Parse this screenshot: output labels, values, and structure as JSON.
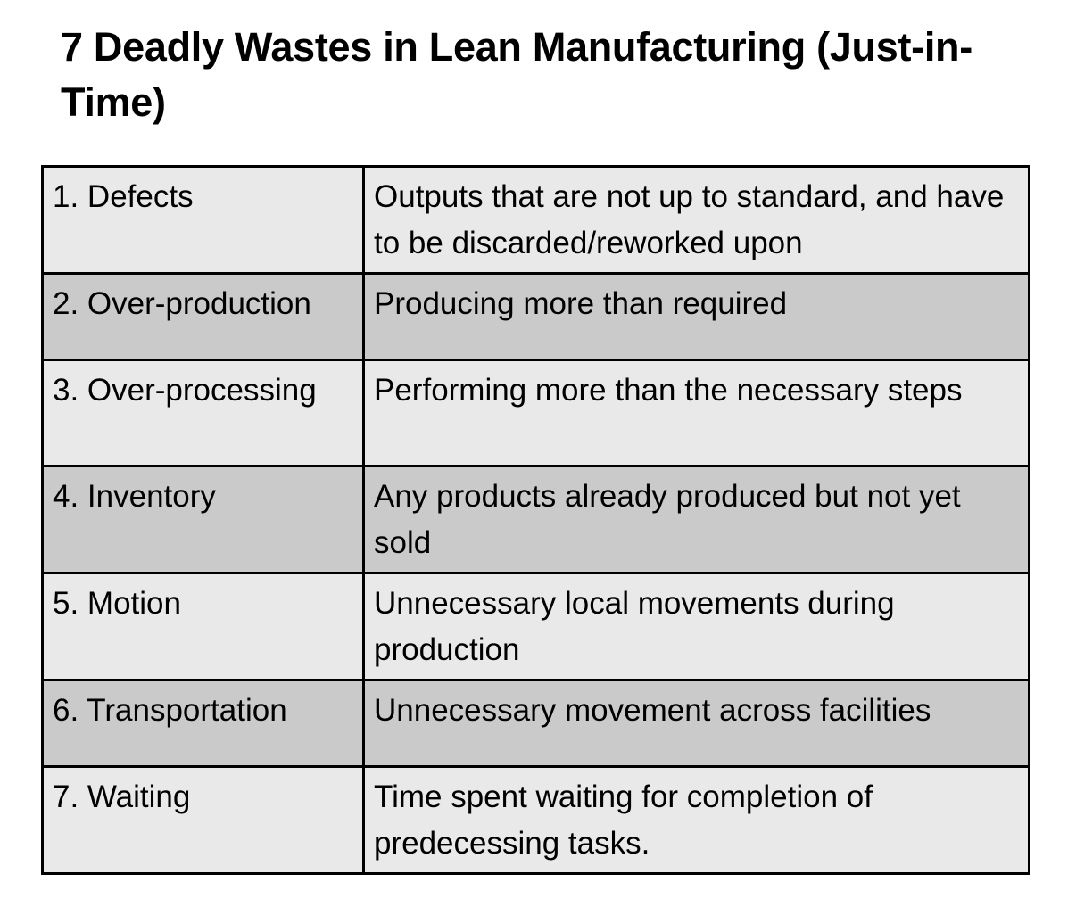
{
  "title": "7 Deadly Wastes in Lean Manufacturing (Just-in-Time)",
  "colors": {
    "row_light": "#e9e9e9",
    "row_dark": "#cacaca",
    "border": "#000000"
  },
  "rows": [
    {
      "name": "1. Defects",
      "description": "Outputs that are not up to standard, and have to be discarded/reworked upon"
    },
    {
      "name": "2. Over-production",
      "description": "Producing more than required"
    },
    {
      "name": "3. Over-processing",
      "description": "Performing more than the necessary steps"
    },
    {
      "name": "4. Inventory",
      "description": "Any products already produced but not yet sold"
    },
    {
      "name": "5. Motion",
      "description": "Unnecessary local movements during production"
    },
    {
      "name": "6. Transportation",
      "description": "Unnecessary movement across facilities"
    },
    {
      "name": "7. Waiting",
      "description": "Time spent waiting for completion of predecessing tasks."
    }
  ]
}
